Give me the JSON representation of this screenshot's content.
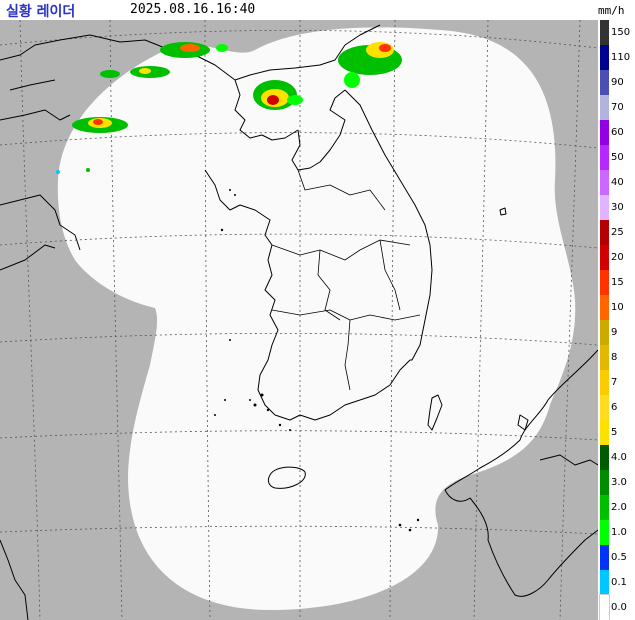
{
  "header": {
    "title": "실황 레이더",
    "timestamp": "2025.08.16.16:40",
    "unit": "mm/h"
  },
  "colors": {
    "land_outside": "#b4b4b4",
    "coverage": "#fafafa",
    "coastline": "#000000",
    "grid": "#444444"
  },
  "legend": {
    "labels": [
      "150",
      "110",
      "90",
      "70",
      "60",
      "50",
      "40",
      "30",
      "25",
      "20",
      "15",
      "10",
      "9",
      "8",
      "7",
      "6",
      "5",
      "4.0",
      "3.0",
      "2.0",
      "1.0",
      "0.5",
      "0.1",
      "0.0"
    ],
    "colors": [
      "#333333",
      "#000390",
      "#4c4eb1",
      "#b3b4de",
      "#9300e4",
      "#b329ff",
      "#c969ff",
      "#e0b4ff",
      "#b40000",
      "#d20000",
      "#ff3200",
      "#ff6600",
      "#ccaa00",
      "#e0b900",
      "#f9cd00",
      "#ffdc1f",
      "#ffe100",
      "#005a00",
      "#008c00",
      "#00be00",
      "#00ff00",
      "#0033f5",
      "#00c8ff",
      "#ffffff"
    ]
  }
}
